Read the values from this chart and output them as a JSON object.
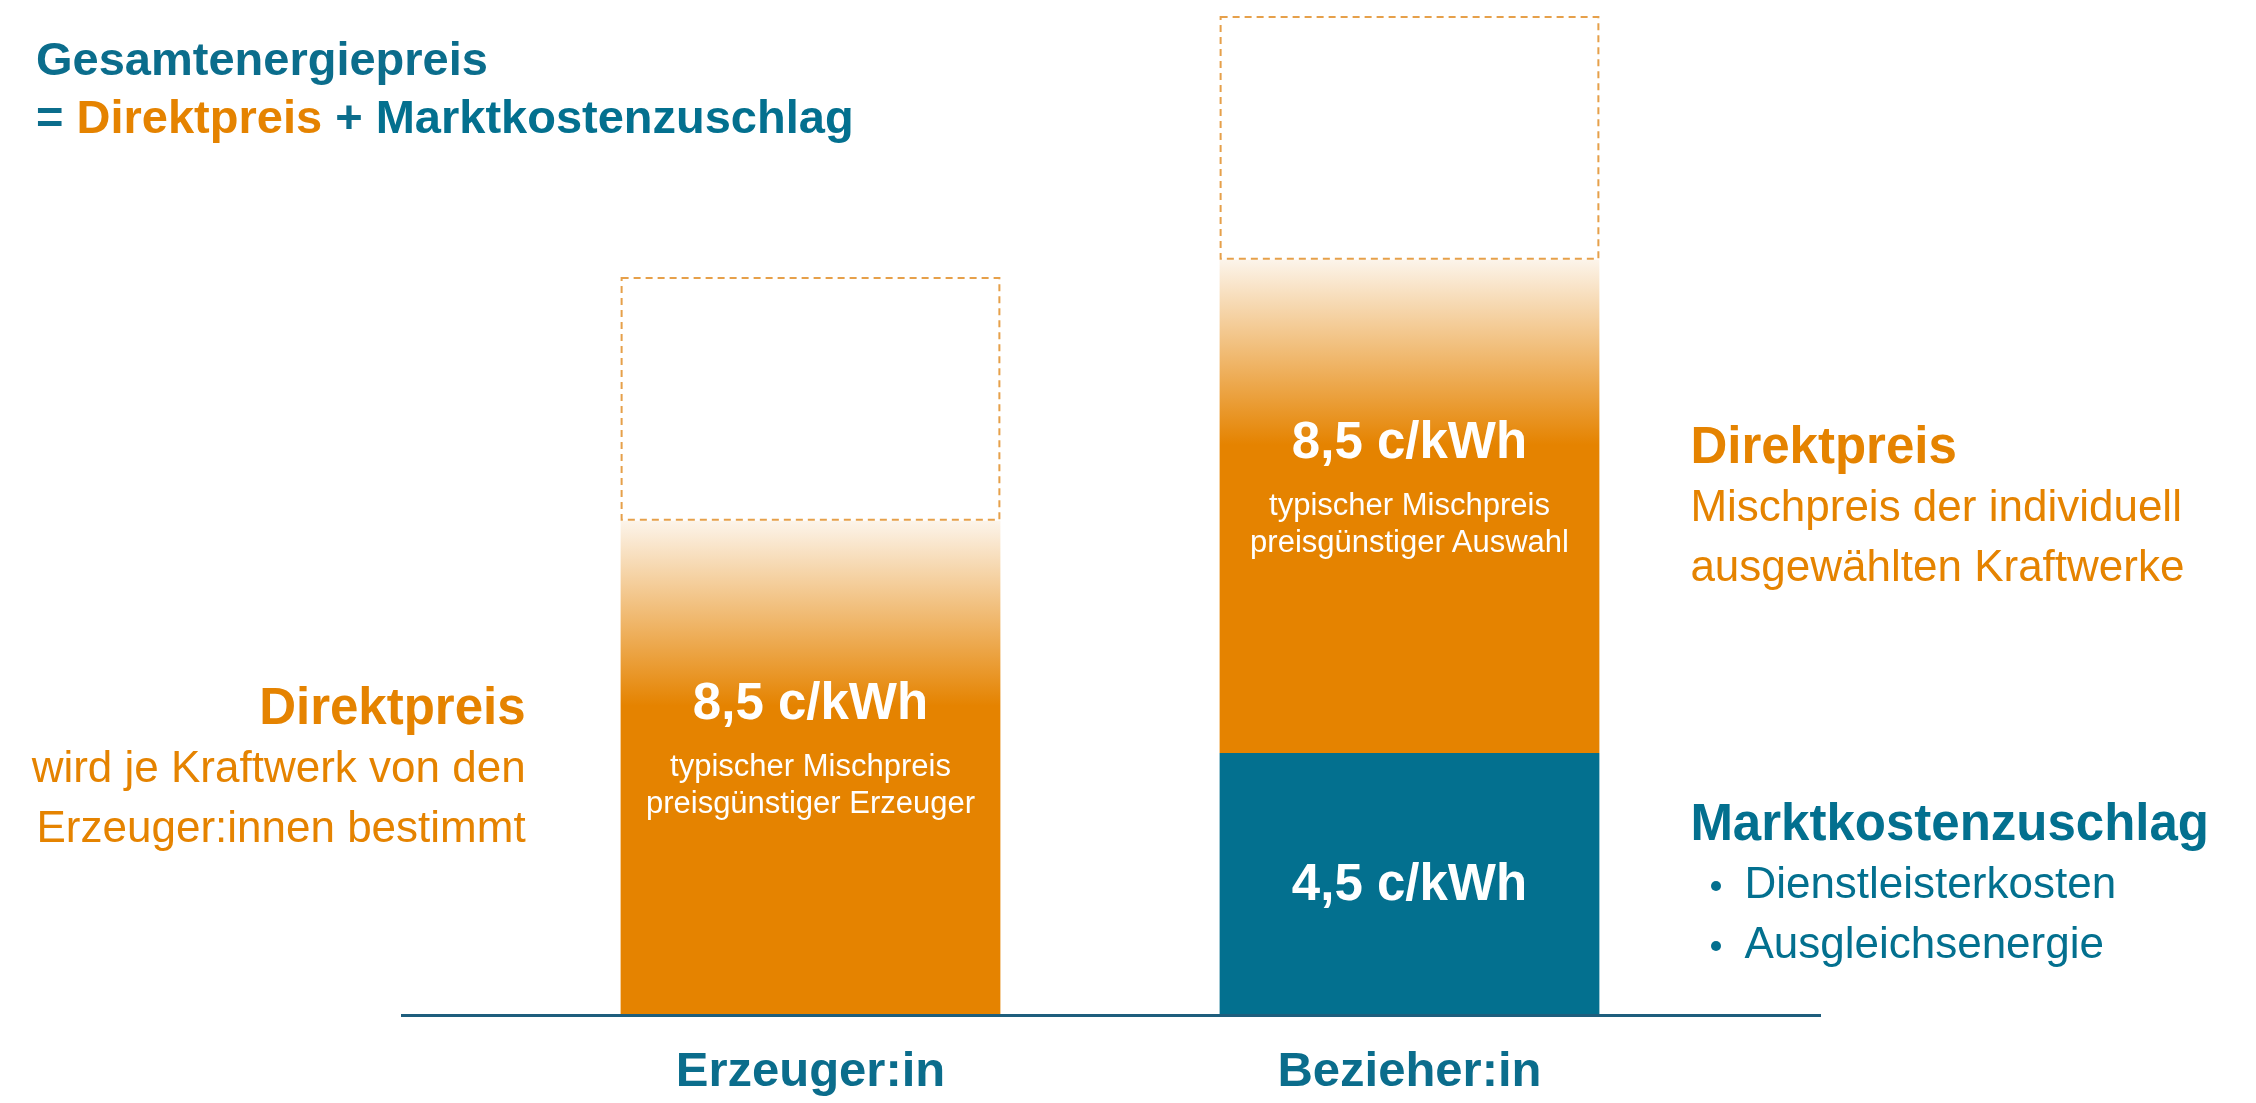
{
  "chart_data": {
    "type": "bar",
    "title": "Gesamtenergiepreis",
    "subtitle": "= Direktpreis + Marktkostenzuschlag",
    "categories": [
      "Erzeuger:in",
      "Bezieher:in"
    ],
    "stacked": true,
    "series": [
      {
        "name": "Marktkostenzuschlag",
        "color": "#03708f",
        "values": [
          null,
          4.5
        ],
        "value_labels": [
          null,
          "4,5 c/kWh"
        ]
      },
      {
        "name": "Direktpreis",
        "color": "#e58300",
        "values": [
          8.5,
          8.5
        ],
        "value_labels": [
          "8,5 c/kWh",
          "8,5 c/kWh"
        ]
      },
      {
        "color": "#e6a04a",
        "values": [
          4.2,
          4.2
        ],
        "line_style": "dashed"
      }
    ],
    "annotations": [
      "typischer Mischpreis preisgünstiger Erzeuger",
      "typischer Mischpreis preisgünstiger Auswahl",
      "wird je Kraftwerk von den Erzeuger:innen bestimmt",
      "Mischpreis der individuell ausgewählten Kraftwerke",
      "Dienstleisterkosten",
      "Ausgleichsenergie"
    ]
  }
}
